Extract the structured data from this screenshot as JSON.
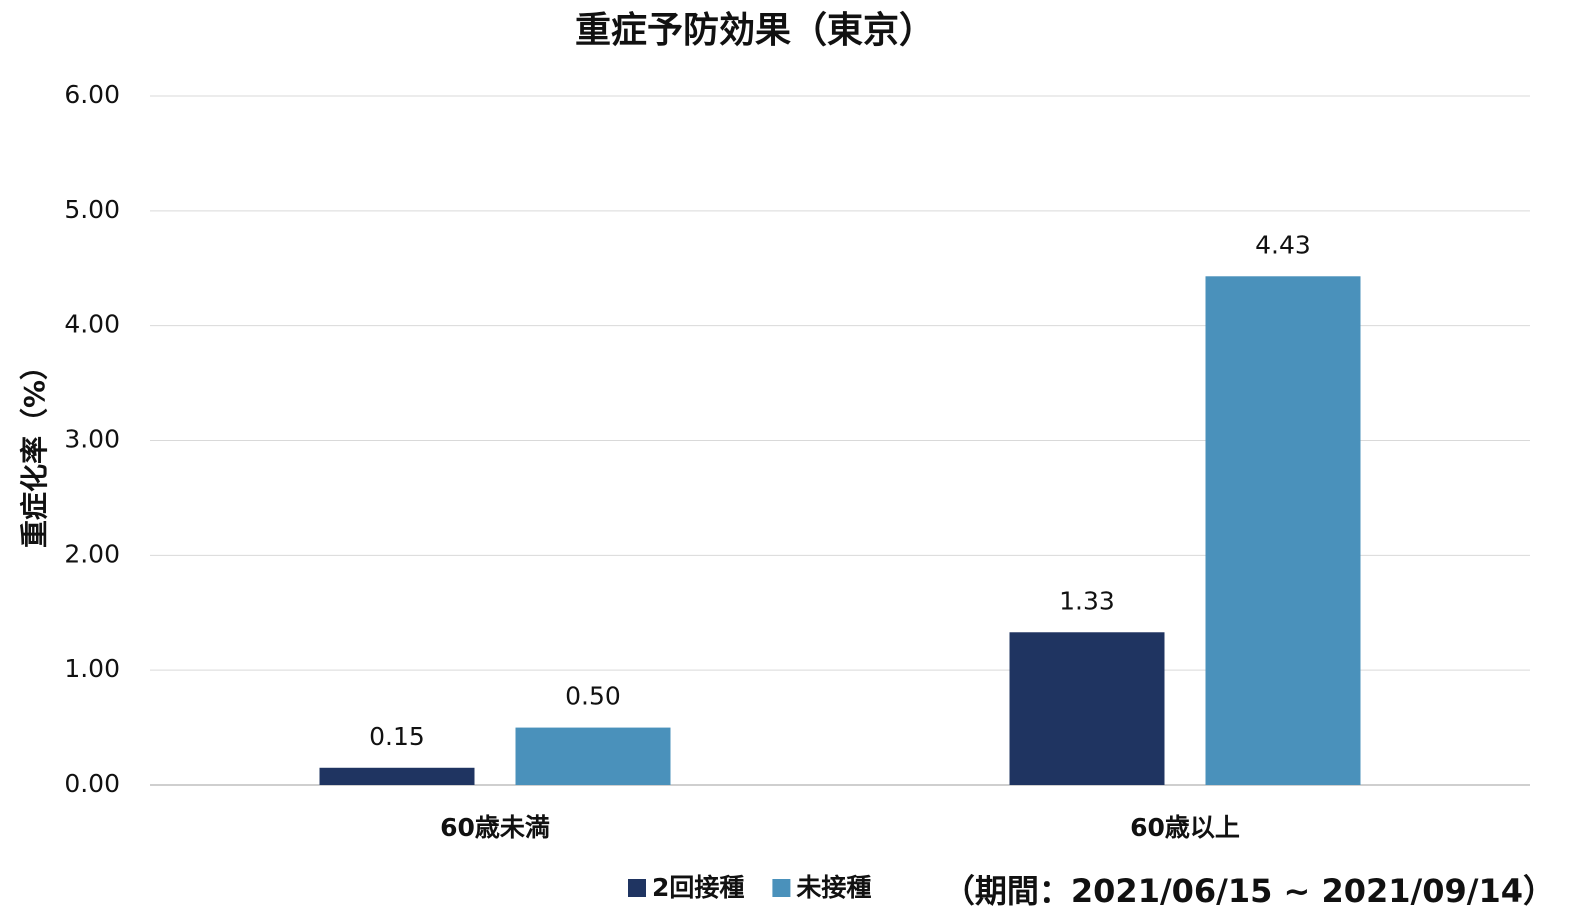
{
  "chart_data": {
    "type": "bar",
    "title": "重症予防効果（東京）",
    "y_label": "重症化率（%）",
    "categories": [
      "60歳未満",
      "60歳以上"
    ],
    "series": [
      {
        "name": "2回接種",
        "color": "#1f3461",
        "values": [
          0.15,
          1.33
        ],
        "value_labels": [
          "0.15",
          "1.33"
        ]
      },
      {
        "name": "未接種",
        "color": "#4a91bb",
        "values": [
          0.5,
          4.43
        ],
        "value_labels": [
          "0.50",
          "4.43"
        ]
      }
    ],
    "ylim": [
      0,
      6
    ],
    "yticks": [
      {
        "value": 0,
        "label": "0.00"
      },
      {
        "value": 1,
        "label": "1.00"
      },
      {
        "value": 2,
        "label": "2.00"
      },
      {
        "value": 3,
        "label": "3.00"
      },
      {
        "value": 4,
        "label": "4.00"
      },
      {
        "value": 5,
        "label": "5.00"
      },
      {
        "value": 6,
        "label": "6.00"
      }
    ],
    "grid": true,
    "legend": "bottom",
    "annotation": "（期間：2021/06/15 ~ 2021/09/14）"
  }
}
